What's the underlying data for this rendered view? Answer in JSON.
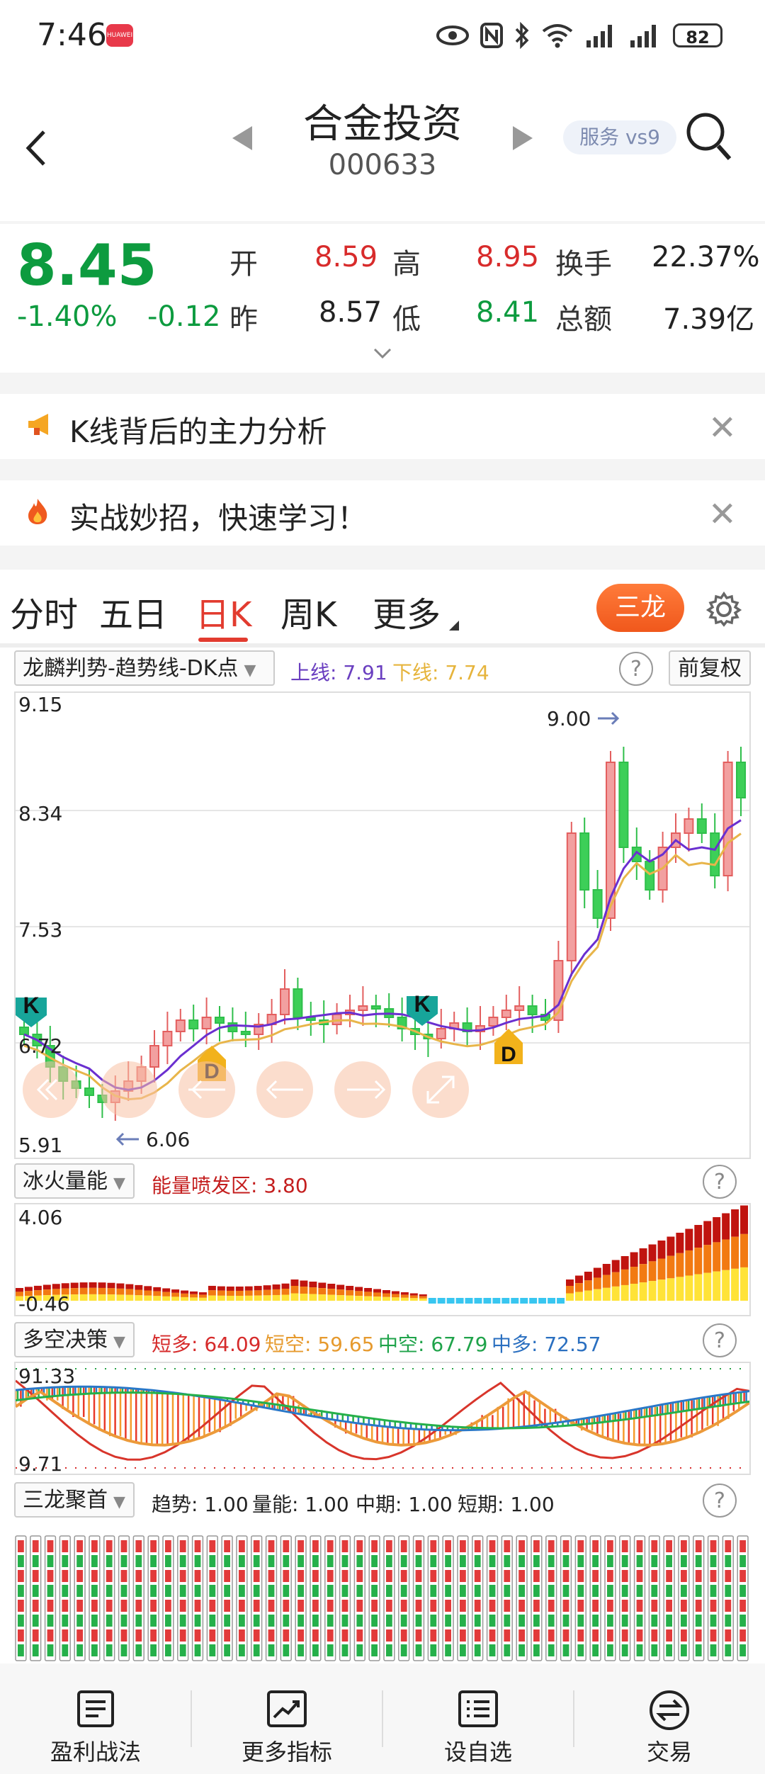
{
  "status": {
    "time": "7:46",
    "badge": "HUAWEI",
    "battery": "82"
  },
  "header": {
    "title": "合金投资",
    "code": "000633",
    "service": "服务 vs9"
  },
  "quote": {
    "price": "8.45",
    "pct": "-1.40%",
    "chg": "-0.12",
    "open_label": "开",
    "open": "8.59",
    "high_label": "高",
    "high": "8.95",
    "turnover_label": "换手",
    "turnover": "22.37%",
    "prev_label": "昨",
    "prev": "8.57",
    "low_label": "低",
    "low": "8.41",
    "amount_label": "总额",
    "amount": "7.39亿"
  },
  "banners": [
    {
      "icon": "megaphone-icon",
      "text": "K线背后的主力分析"
    },
    {
      "icon": "fire-icon",
      "text": "实战妙招，快速学习！"
    }
  ],
  "tabs": {
    "items": [
      "分时",
      "五日",
      "日K",
      "周K",
      "更多"
    ],
    "active": "日K",
    "sanlong": "三龙"
  },
  "kline": {
    "indicator": "龙麟判势-趋势线-DK点",
    "upper_label": "上线: 7.91",
    "lower_label": "下线: 7.74",
    "restore": "前复权",
    "y_top": "9.15",
    "y_mid1": "8.34",
    "y_mid2": "7.53",
    "y_mid3": "6.72",
    "y_bottom": "5.91",
    "max_mark": "9.00",
    "min_mark": "6.06",
    "k_label": "K",
    "d_label": "D"
  },
  "volume": {
    "indicator": "冰火量能",
    "burst_label": "能量喷发区: 3.80",
    "y_top": "4.06",
    "y_bottom": "-0.46"
  },
  "duokong": {
    "indicator": "多空决策",
    "short_bull": "短多: 64.09",
    "short_empty": "短空: 59.65",
    "mid_empty": "中空: 67.79",
    "mid_bull": "中多: 72.57",
    "y_top": "91.33",
    "y_bottom": "9.71"
  },
  "sanlong_panel": {
    "indicator": "三龙聚首",
    "trend": "趋势: 1.00",
    "energy": "量能: 1.00",
    "mid": "中期: 1.00",
    "short": "短期: 1.00"
  },
  "bottom_nav": [
    {
      "icon": "doc-icon",
      "label": "盈利战法"
    },
    {
      "icon": "chart-trend-icon",
      "label": "更多指标"
    },
    {
      "icon": "list-icon",
      "label": "设自选"
    },
    {
      "icon": "exchange-icon",
      "label": "交易"
    }
  ]
}
